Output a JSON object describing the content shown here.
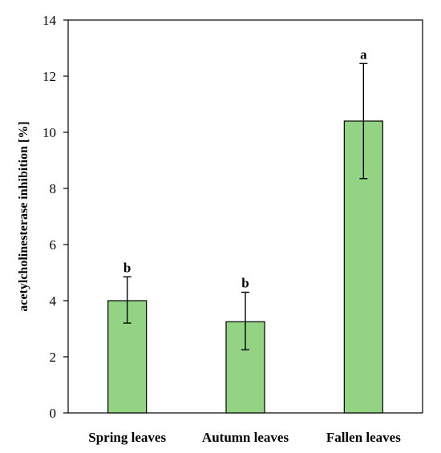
{
  "chart_data": {
    "type": "bar",
    "title": "",
    "xlabel": "",
    "ylabel": "acetylcholinesterase inhibition [%]",
    "ylim": [
      0,
      14
    ],
    "yticks": [
      0,
      2,
      4,
      6,
      8,
      10,
      12,
      14
    ],
    "grid": false,
    "legend": "none",
    "categories": [
      "Spring leaves",
      "Autumn leaves",
      "Fallen leaves"
    ],
    "series": [
      {
        "values": [
          4.0,
          3.25,
          10.4
        ],
        "error_low": [
          3.2,
          2.25,
          8.35
        ],
        "error_high": [
          4.85,
          4.3,
          12.45
        ],
        "significance": [
          "b",
          "b",
          "a"
        ]
      }
    ],
    "colors": {
      "bar_fill": "#92d384",
      "bar_stroke": "#000000",
      "axis": "#000000"
    }
  }
}
